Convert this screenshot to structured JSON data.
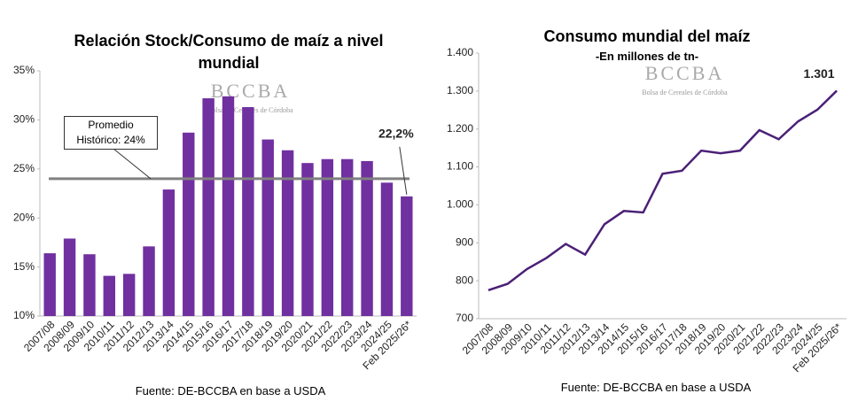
{
  "chart_data": [
    {
      "type": "bar",
      "title": "Relación Stock/Consumo de maíz  a nivel mundial",
      "watermark": {
        "brand": "BCCBA",
        "tagline": "Bolsa de Cereales de Córdoba"
      },
      "categories": [
        "2007/08",
        "2008/09",
        "2009/10",
        "2010/11",
        "2011/12",
        "2012/13",
        "2013/14",
        "2014/15",
        "2015/16",
        "2016/17",
        "2017/18",
        "2018/19",
        "2019/20",
        "2020/21",
        "2021/22",
        "2022/23",
        "2023/24",
        "2024/25",
        "Feb 2025/26*"
      ],
      "values": [
        16.4,
        17.9,
        16.3,
        14.1,
        14.3,
        17.1,
        22.9,
        28.7,
        32.2,
        32.4,
        31.3,
        28.0,
        26.9,
        25.6,
        26.0,
        26.0,
        25.8,
        23.6,
        22.2
      ],
      "value_labels": [
        null,
        null,
        null,
        null,
        null,
        null,
        null,
        null,
        null,
        null,
        null,
        null,
        null,
        null,
        null,
        null,
        null,
        null,
        "22,2%"
      ],
      "color": "#7030a0",
      "ylim": [
        10,
        35
      ],
      "yticks": [
        {
          "value": 10,
          "label": "10%"
        },
        {
          "value": 15,
          "label": "15%"
        },
        {
          "value": 20,
          "label": "20%"
        },
        {
          "value": 25,
          "label": "25%"
        },
        {
          "value": 30,
          "label": "30%"
        },
        {
          "value": 35,
          "label": "35%"
        }
      ],
      "reference_line": {
        "value": 24,
        "label": "Promedio Histórico: 24%",
        "color": "#808080"
      },
      "source": "Fuente: DE-BCCBA en base a USDA"
    },
    {
      "type": "line",
      "title": "Consumo mundial del maíz",
      "subtitle": "-En millones de tn-",
      "watermark": {
        "brand": "BCCBA",
        "tagline": "Bolsa de Cereales de Córdoba"
      },
      "categories": [
        "2007/08",
        "2008/09",
        "2009/10",
        "2010/11",
        "2011/12",
        "2012/13",
        "2013/14",
        "2014/15",
        "2015/16",
        "2016/17",
        "2017/18",
        "2018/19",
        "2019/20",
        "2020/21",
        "2021/22",
        "2022/23",
        "2023/24",
        "2024/25",
        "Feb 2025/26*"
      ],
      "values": [
        775,
        792,
        831,
        860,
        897,
        869,
        949,
        984,
        980,
        1082,
        1090,
        1143,
        1136,
        1143,
        1197,
        1173,
        1220,
        1251,
        1301
      ],
      "value_labels": [
        null,
        null,
        null,
        null,
        null,
        null,
        null,
        null,
        null,
        null,
        null,
        null,
        null,
        null,
        null,
        null,
        null,
        null,
        "1.301"
      ],
      "color": "#4b2077",
      "ylim": [
        700,
        1400
      ],
      "yticks": [
        700,
        800,
        900,
        {
          "value": 1000,
          "label": "1.000"
        },
        {
          "value": 1100,
          "label": "1.100"
        },
        {
          "value": 1200,
          "label": "1.200"
        },
        {
          "value": 1300,
          "label": "1.300"
        },
        {
          "value": 1400,
          "label": "1.400"
        }
      ],
      "source": "Fuente: DE-BCCBA en base a USDA"
    }
  ]
}
